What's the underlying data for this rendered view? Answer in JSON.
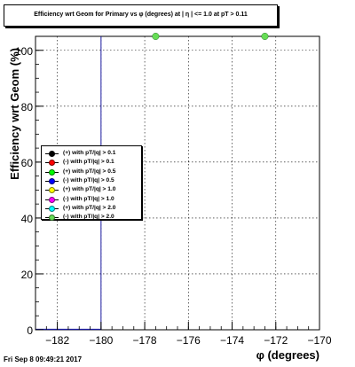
{
  "title": "Efficiency wrt Geom for Primary vs φ (degrees) at | η | <= 1.0 at pT > 0.11",
  "footer": "Fri Sep  8 09:49:21 2017",
  "chart_data": {
    "type": "scatter",
    "xlabel": "φ (degrees)",
    "ylabel": "Efficiency wrt Geom (%)",
    "xlim": [
      -183,
      -170
    ],
    "ylim": [
      0,
      105
    ],
    "x_ticks": [
      -182,
      -180,
      -178,
      -176,
      -174,
      -172,
      -170
    ],
    "y_ticks": [
      0,
      20,
      40,
      60,
      80,
      100
    ],
    "grid": true,
    "reference_line_x": -180,
    "legend_position": "center-left",
    "series": [
      {
        "name": "(+) with pT/|q| > 0.1",
        "color": "#000000",
        "points": []
      },
      {
        "name": "(-) with pT/|q| > 0.1",
        "color": "#ff0000",
        "points": []
      },
      {
        "name": "(+) with pT/|q| > 0.5",
        "color": "#00ff00",
        "points": []
      },
      {
        "name": "(-) with pT/|q| > 0.5",
        "color": "#0000ff",
        "points": []
      },
      {
        "name": "(+) with pT/|q| > 1.0",
        "color": "#ffff00",
        "points": []
      },
      {
        "name": "(-) with pT/|q| > 1.0",
        "color": "#ff00ff",
        "points": []
      },
      {
        "name": "(+) with pT/|q| > 2.0",
        "color": "#00ffff",
        "points": []
      },
      {
        "name": "(-) with pT/|q| > 2.0",
        "color": "#66dd55",
        "points": [
          {
            "x": -177.5,
            "y": 105
          },
          {
            "x": -172.5,
            "y": 105
          }
        ]
      }
    ]
  }
}
